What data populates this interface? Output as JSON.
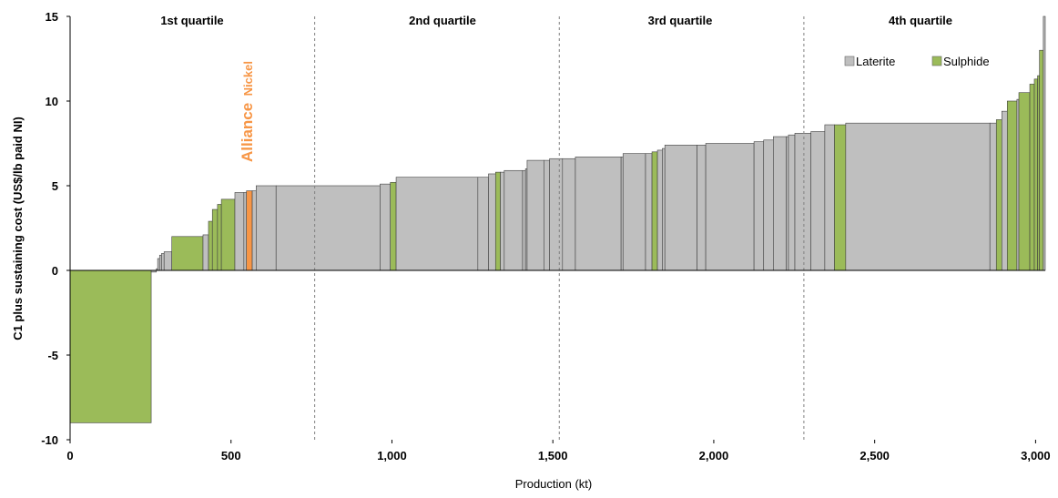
{
  "chart_data": {
    "type": "bar",
    "subtype": "cost-curve",
    "ylabel": "C1 plus sustaining cost (US$/lb paid NI)",
    "xlabel": "Production (kt)",
    "xlim": [
      0,
      3030
    ],
    "ylim": [
      -10,
      15
    ],
    "x_ticks": [
      0,
      500,
      1000,
      1500,
      2000,
      2500,
      3000
    ],
    "x_tick_labels": [
      "0",
      "500",
      "1,000",
      "1,500",
      "2,000",
      "2,500",
      "3,000"
    ],
    "y_ticks": [
      -10,
      -5,
      0,
      5,
      10,
      15
    ],
    "y_tick_labels": [
      "-10",
      "-5",
      "0",
      "5",
      "10",
      "15"
    ],
    "grid": false,
    "legend_position": "top-right",
    "legend": [
      {
        "name": "Laterite",
        "color": "#bfbfbf"
      },
      {
        "name": "Sulphide",
        "color": "#9bbb59"
      }
    ],
    "highlight_color": "#f79646",
    "quartiles": [
      {
        "label": "1st quartile"
      },
      {
        "label": "2nd quartile"
      },
      {
        "label": "3rd quartile"
      },
      {
        "label": "4th quartile"
      }
    ],
    "quartile_dividers": [
      760,
      1520,
      2280
    ],
    "highlight_label": {
      "main": "Alliance",
      "sub": "Nickel"
    },
    "series_key": [
      "Laterite",
      "Sulphide",
      "Alliance Nickel"
    ],
    "bars": [
      {
        "x0": 0,
        "x1": 252,
        "y": -9.0,
        "type": "Sulphide"
      },
      {
        "x0": 252,
        "x1": 268,
        "y": -0.1,
        "type": "Laterite"
      },
      {
        "x0": 268,
        "x1": 272,
        "y": 0.1,
        "type": "Laterite"
      },
      {
        "x0": 272,
        "x1": 278,
        "y": 0.7,
        "type": "Laterite"
      },
      {
        "x0": 278,
        "x1": 284,
        "y": 0.9,
        "type": "Laterite"
      },
      {
        "x0": 284,
        "x1": 292,
        "y": 1.0,
        "type": "Laterite"
      },
      {
        "x0": 292,
        "x1": 316,
        "y": 1.1,
        "type": "Laterite"
      },
      {
        "x0": 316,
        "x1": 413,
        "y": 2.0,
        "type": "Sulphide"
      },
      {
        "x0": 413,
        "x1": 430,
        "y": 2.1,
        "type": "Laterite"
      },
      {
        "x0": 430,
        "x1": 442,
        "y": 2.9,
        "type": "Sulphide"
      },
      {
        "x0": 442,
        "x1": 458,
        "y": 3.6,
        "type": "Sulphide"
      },
      {
        "x0": 458,
        "x1": 470,
        "y": 3.9,
        "type": "Sulphide"
      },
      {
        "x0": 470,
        "x1": 512,
        "y": 4.2,
        "type": "Sulphide"
      },
      {
        "x0": 512,
        "x1": 540,
        "y": 4.6,
        "type": "Laterite"
      },
      {
        "x0": 540,
        "x1": 548,
        "y": 4.6,
        "type": "Laterite"
      },
      {
        "x0": 548,
        "x1": 566,
        "y": 4.7,
        "type": "Alliance Nickel"
      },
      {
        "x0": 566,
        "x1": 578,
        "y": 4.7,
        "type": "Laterite"
      },
      {
        "x0": 578,
        "x1": 640,
        "y": 5.0,
        "type": "Laterite"
      },
      {
        "x0": 640,
        "x1": 963,
        "y": 5.0,
        "type": "Laterite"
      },
      {
        "x0": 963,
        "x1": 995,
        "y": 5.1,
        "type": "Laterite"
      },
      {
        "x0": 995,
        "x1": 1013,
        "y": 5.2,
        "type": "Sulphide"
      },
      {
        "x0": 1013,
        "x1": 1267,
        "y": 5.5,
        "type": "Laterite"
      },
      {
        "x0": 1267,
        "x1": 1300,
        "y": 5.5,
        "type": "Laterite"
      },
      {
        "x0": 1300,
        "x1": 1322,
        "y": 5.7,
        "type": "Laterite"
      },
      {
        "x0": 1322,
        "x1": 1337,
        "y": 5.8,
        "type": "Sulphide"
      },
      {
        "x0": 1337,
        "x1": 1349,
        "y": 5.8,
        "type": "Laterite"
      },
      {
        "x0": 1349,
        "x1": 1406,
        "y": 5.9,
        "type": "Laterite"
      },
      {
        "x0": 1406,
        "x1": 1415,
        "y": 5.9,
        "type": "Laterite"
      },
      {
        "x0": 1415,
        "x1": 1420,
        "y": 6.0,
        "type": "Laterite"
      },
      {
        "x0": 1420,
        "x1": 1472,
        "y": 6.5,
        "type": "Laterite"
      },
      {
        "x0": 1472,
        "x1": 1490,
        "y": 6.5,
        "type": "Laterite"
      },
      {
        "x0": 1490,
        "x1": 1530,
        "y": 6.6,
        "type": "Laterite"
      },
      {
        "x0": 1530,
        "x1": 1570,
        "y": 6.6,
        "type": "Laterite"
      },
      {
        "x0": 1570,
        "x1": 1712,
        "y": 6.7,
        "type": "Laterite"
      },
      {
        "x0": 1712,
        "x1": 1718,
        "y": 6.7,
        "type": "Laterite"
      },
      {
        "x0": 1718,
        "x1": 1788,
        "y": 6.9,
        "type": "Laterite"
      },
      {
        "x0": 1788,
        "x1": 1808,
        "y": 6.9,
        "type": "Laterite"
      },
      {
        "x0": 1808,
        "x1": 1825,
        "y": 7.0,
        "type": "Sulphide"
      },
      {
        "x0": 1825,
        "x1": 1840,
        "y": 7.1,
        "type": "Laterite"
      },
      {
        "x0": 1840,
        "x1": 1848,
        "y": 7.2,
        "type": "Laterite"
      },
      {
        "x0": 1848,
        "x1": 1948,
        "y": 7.4,
        "type": "Laterite"
      },
      {
        "x0": 1948,
        "x1": 1975,
        "y": 7.4,
        "type": "Laterite"
      },
      {
        "x0": 1975,
        "x1": 2125,
        "y": 7.5,
        "type": "Laterite"
      },
      {
        "x0": 2125,
        "x1": 2155,
        "y": 7.6,
        "type": "Laterite"
      },
      {
        "x0": 2155,
        "x1": 2185,
        "y": 7.7,
        "type": "Laterite"
      },
      {
        "x0": 2185,
        "x1": 2225,
        "y": 7.9,
        "type": "Laterite"
      },
      {
        "x0": 2225,
        "x1": 2232,
        "y": 7.9,
        "type": "Laterite"
      },
      {
        "x0": 2232,
        "x1": 2252,
        "y": 8.0,
        "type": "Laterite"
      },
      {
        "x0": 2252,
        "x1": 2302,
        "y": 8.1,
        "type": "Laterite"
      },
      {
        "x0": 2302,
        "x1": 2345,
        "y": 8.2,
        "type": "Laterite"
      },
      {
        "x0": 2345,
        "x1": 2375,
        "y": 8.6,
        "type": "Laterite"
      },
      {
        "x0": 2375,
        "x1": 2410,
        "y": 8.6,
        "type": "Sulphide"
      },
      {
        "x0": 2410,
        "x1": 2858,
        "y": 8.7,
        "type": "Laterite"
      },
      {
        "x0": 2858,
        "x1": 2878,
        "y": 8.7,
        "type": "Laterite"
      },
      {
        "x0": 2878,
        "x1": 2895,
        "y": 8.9,
        "type": "Sulphide"
      },
      {
        "x0": 2895,
        "x1": 2912,
        "y": 9.4,
        "type": "Laterite"
      },
      {
        "x0": 2912,
        "x1": 2942,
        "y": 10.0,
        "type": "Sulphide"
      },
      {
        "x0": 2942,
        "x1": 2948,
        "y": 10.1,
        "type": "Laterite"
      },
      {
        "x0": 2948,
        "x1": 2982,
        "y": 10.5,
        "type": "Sulphide"
      },
      {
        "x0": 2982,
        "x1": 2996,
        "y": 11.0,
        "type": "Sulphide"
      },
      {
        "x0": 2996,
        "x1": 3006,
        "y": 11.3,
        "type": "Sulphide"
      },
      {
        "x0": 3006,
        "x1": 3012,
        "y": 11.5,
        "type": "Sulphide"
      },
      {
        "x0": 3012,
        "x1": 3024,
        "y": 13.0,
        "type": "Sulphide"
      },
      {
        "x0": 3024,
        "x1": 3030,
        "y": 15.0,
        "type": "Laterite"
      }
    ]
  }
}
